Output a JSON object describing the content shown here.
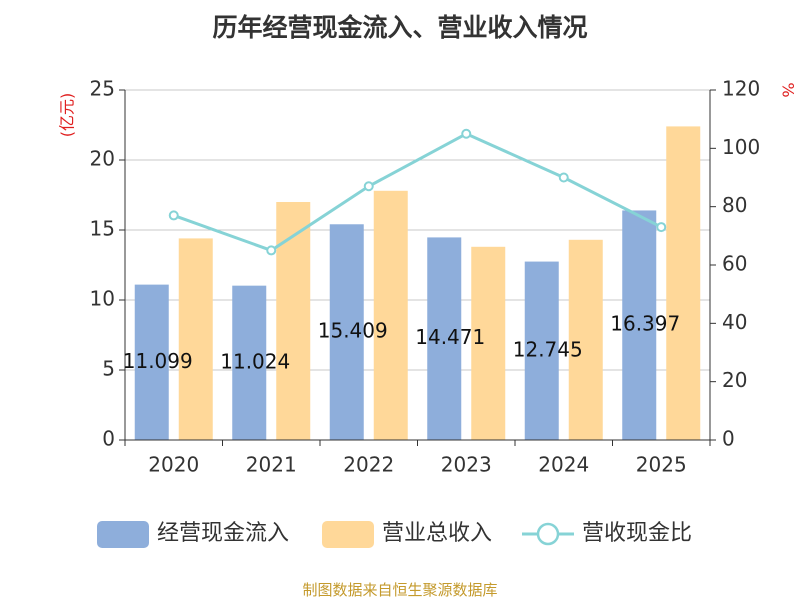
{
  "chart_data": {
    "type": "bar",
    "title": "历年经营现金流入、营业收入情况",
    "categories": [
      "2020",
      "2021",
      "2022",
      "2023",
      "2024",
      "2025"
    ],
    "y_left": {
      "unit": "(亿元)",
      "range": [
        0,
        25
      ],
      "ticks": [
        "0",
        "5",
        "10",
        "15",
        "20",
        "25"
      ]
    },
    "y_right": {
      "unit": "%",
      "range": [
        0,
        120
      ],
      "ticks": [
        "0",
        "20",
        "40",
        "60",
        "80",
        "100",
        "120"
      ]
    },
    "series": [
      {
        "name": "经营现金流入",
        "kind": "bar",
        "axis": "left",
        "color": "#8eaedb",
        "values": [
          11.099,
          11.024,
          15.409,
          14.471,
          12.745,
          16.397
        ],
        "labels": [
          "11.099",
          "11.024",
          "15.409",
          "14.471",
          "12.745",
          "16.397"
        ]
      },
      {
        "name": "营业总收入",
        "kind": "bar",
        "axis": "left",
        "color": "#ffd899",
        "values": [
          14.4,
          17.0,
          17.8,
          13.8,
          14.3,
          22.4
        ]
      },
      {
        "name": "营收现金比",
        "kind": "line",
        "axis": "right",
        "color": "#86d3d6",
        "values": [
          77,
          65,
          87,
          105,
          90,
          73
        ]
      }
    ],
    "grid": true,
    "legend_position": "bottom"
  },
  "source": "制图数据来自恒生聚源数据库"
}
